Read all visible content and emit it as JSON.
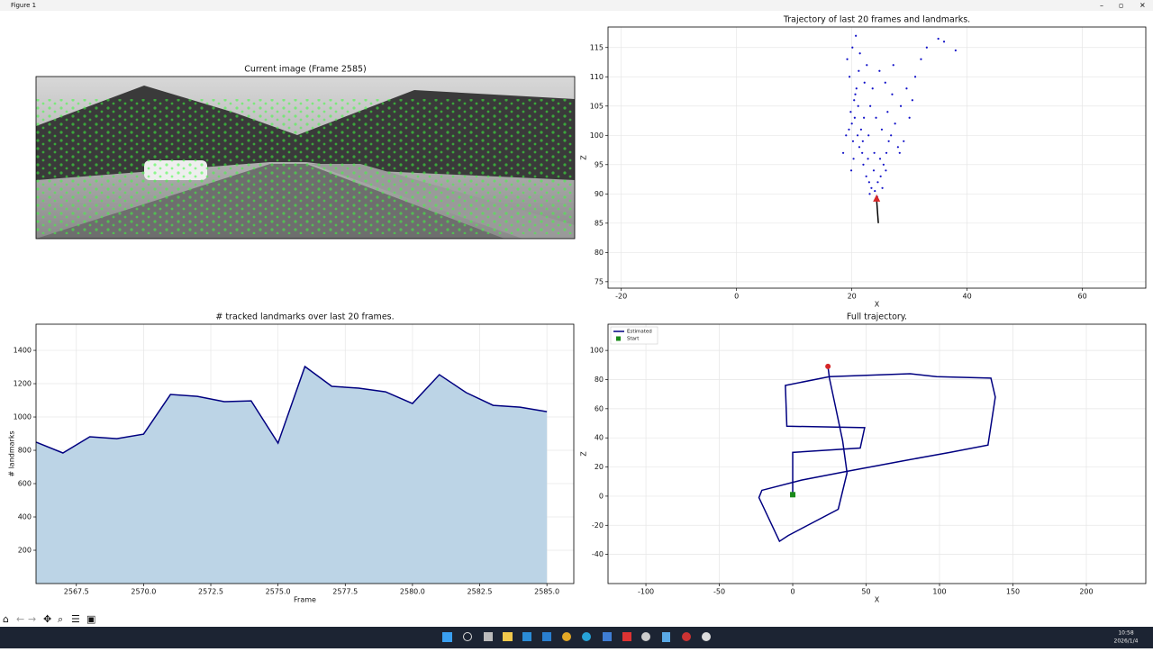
{
  "window": {
    "title": "Figure 1"
  },
  "chart_data": [
    {
      "type": "image",
      "title": "Current image (Frame 2585)"
    },
    {
      "type": "scatter",
      "title": "Trajectory of last 20 frames and landmarks.",
      "xlabel": "X",
      "ylabel": "Z",
      "xlim": [
        -22.3,
        71
      ],
      "xticks": [
        -20,
        0,
        20,
        40,
        60
      ],
      "ylim": [
        73.9,
        118.5
      ],
      "yticks": [
        75,
        80,
        85,
        90,
        95,
        100,
        105,
        110,
        115
      ],
      "grid": true,
      "series": [
        {
          "color": "#1010c8",
          "x": [
            18.5,
            19,
            19.5,
            20,
            20.2,
            20.5,
            21,
            21.3,
            19.8,
            20.4,
            21.6,
            22,
            22.5,
            23,
            23.4,
            24,
            24.5,
            25,
            25.5,
            26,
            26.4,
            23.8,
            22.8,
            21.8,
            20.8,
            19.6,
            19.2,
            20.1,
            20.7,
            21.2,
            22.2,
            23.2,
            24.2,
            25.2,
            26.2,
            27,
            25.8,
            24.8,
            23.6,
            22.6,
            21.4,
            20.3,
            19.9,
            21.9,
            22.9,
            23.9,
            24.9,
            25.9,
            27.5,
            28,
            28.5,
            29,
            29.5,
            30,
            31,
            32,
            33,
            35,
            36,
            38,
            27.2,
            28.3,
            30.5,
            26.8,
            22.1,
            21.1,
            20.6,
            23.1,
            24.4,
            25.3
          ],
          "values": [
            97,
            100,
            101,
            102,
            99,
            103,
            100,
            98,
            104,
            106,
            101,
            95,
            93,
            92,
            91,
            90.5,
            92,
            93,
            95,
            97,
            99,
            94,
            96,
            97,
            108,
            110,
            113,
            115,
            117,
            111,
            109,
            105,
            103,
            101,
            104,
            107,
            109,
            111,
            108,
            112,
            114,
            96,
            94,
            99,
            100,
            97,
            96,
            94,
            102,
            98,
            105,
            99,
            108,
            103,
            110,
            113,
            115,
            116.5,
            116,
            114.5,
            112,
            97,
            106,
            100,
            103,
            105,
            107,
            90,
            89.5,
            91
          ]
        }
      ],
      "trajectory": {
        "x": [
          24.6,
          24.3
        ],
        "values": [
          85,
          89
        ],
        "color": "#000000",
        "arrow_color": "#d62728"
      }
    },
    {
      "type": "area",
      "title": "# tracked landmarks over last 20 frames.",
      "xlabel": "Frame",
      "ylabel": "# landmarks",
      "xlim": [
        2566,
        2586
      ],
      "xticks": [
        2567.5,
        {
          "value": 2570,
          "label": "2570.0"
        },
        2572.5,
        {
          "value": 2575,
          "label": "2575.0"
        },
        2577.5,
        {
          "value": 2580,
          "label": "2580.0"
        },
        2582.5,
        {
          "value": 2585,
          "label": "2585.0"
        }
      ],
      "ylim": [
        0,
        1557
      ],
      "yticks": [
        200,
        400,
        600,
        800,
        1000,
        1200,
        1400
      ],
      "grid": true,
      "color": "#000080",
      "fill": "#bcd4e6",
      "x": [
        2566,
        2567,
        2568,
        2569,
        2570,
        2571,
        2572,
        2573,
        2574,
        2575,
        2576,
        2577,
        2578,
        2579,
        2580,
        2581,
        2582,
        2583,
        2584,
        2585
      ],
      "values": [
        849,
        784,
        881,
        870,
        897,
        1135,
        1124,
        1092,
        1097,
        843,
        1303,
        1184,
        1173,
        1151,
        1081,
        1254,
        1146,
        1070,
        1059,
        1032
      ]
    },
    {
      "type": "line",
      "title": "Full trajectory.",
      "xlabel": "X",
      "ylabel": "Z",
      "xlim": [
        -125.8,
        240.5
      ],
      "xticks": [
        -100,
        -50,
        0,
        50,
        100,
        150,
        200
      ],
      "ylim": [
        -60,
        118
      ],
      "yticks": [
        -40,
        -20,
        0,
        20,
        40,
        60,
        80,
        100
      ],
      "grid": true,
      "legend": "upper left",
      "series": [
        {
          "name": "Estimated",
          "color": "#000080",
          "x": [
            0,
            0,
            46,
            49,
            -4,
            -5,
            25,
            80,
            98,
            135,
            138,
            133,
            107,
            74,
            37,
            6,
            -21,
            -23,
            -9,
            -3,
            31,
            37,
            34,
            29,
            25,
            24
          ],
          "values": [
            1,
            30,
            33,
            47,
            48,
            76,
            82,
            84,
            82,
            81,
            68,
            35,
            30,
            24,
            17,
            11,
            4,
            -1,
            -31,
            -27,
            -9,
            16,
            38,
            62,
            81,
            89
          ]
        },
        {
          "name": "Start",
          "color": "#1a8a1a",
          "marker": "square",
          "x": [
            0
          ],
          "values": [
            1
          ]
        }
      ],
      "end_point": {
        "x": 24,
        "y": 89,
        "color": "#d62728"
      }
    }
  ],
  "taskbar": {
    "time": "10:58",
    "date": "2026/1/4"
  }
}
